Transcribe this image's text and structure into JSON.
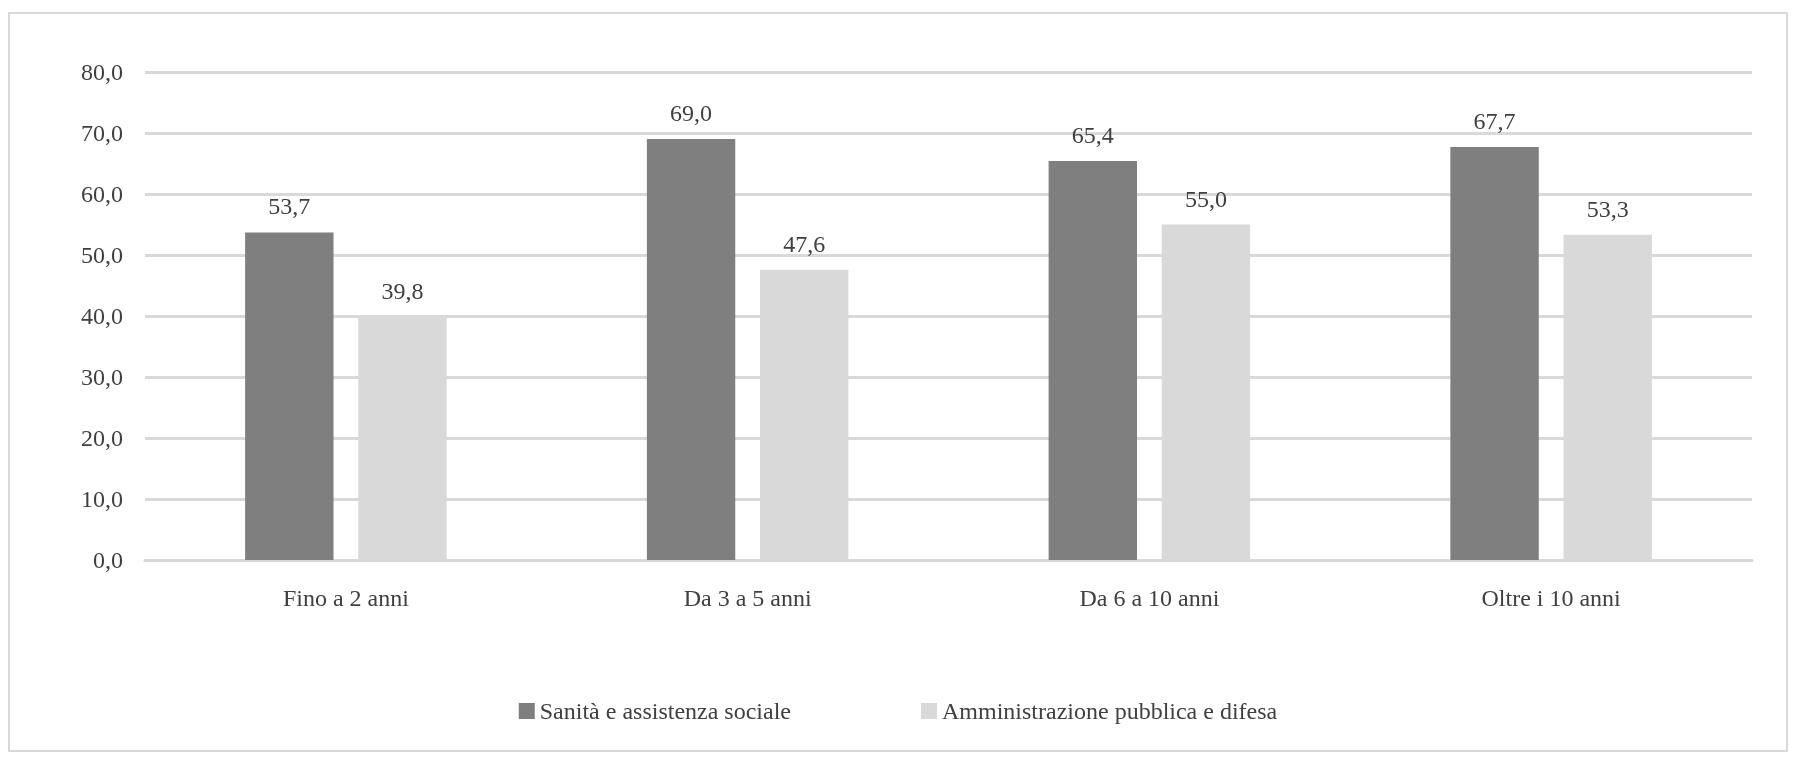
{
  "chart_data": {
    "type": "bar",
    "categories": [
      "Fino a 2 anni",
      "Da 3 a 5 anni",
      "Da 6 a 10 anni",
      "Oltre i 10 anni"
    ],
    "series": [
      {
        "name": "Sanità e assistenza sociale",
        "color": "#7f7f7f",
        "values": [
          53.7,
          69.0,
          65.4,
          67.7
        ],
        "value_labels": [
          "53,7",
          "69,0",
          "65,4",
          "67,7"
        ]
      },
      {
        "name": "Amministrazione pubblica e difesa",
        "color": "#d9d9d9",
        "values": [
          39.8,
          47.6,
          55.0,
          53.3
        ],
        "value_labels": [
          "39,8",
          "47,6",
          "55,0",
          "53,3"
        ]
      }
    ],
    "ylim": [
      0,
      80
    ],
    "yticks": [
      {
        "value": 0,
        "label": "0,0"
      },
      {
        "value": 10,
        "label": "10,0"
      },
      {
        "value": 20,
        "label": "20,0"
      },
      {
        "value": 30,
        "label": "30,0"
      },
      {
        "value": 40,
        "label": "40,0"
      },
      {
        "value": 50,
        "label": "50,0"
      },
      {
        "value": 60,
        "label": "60,0"
      },
      {
        "value": 70,
        "label": "70,0"
      },
      {
        "value": 80,
        "label": "80,0"
      }
    ],
    "grid": "y",
    "legend": "bottom"
  }
}
